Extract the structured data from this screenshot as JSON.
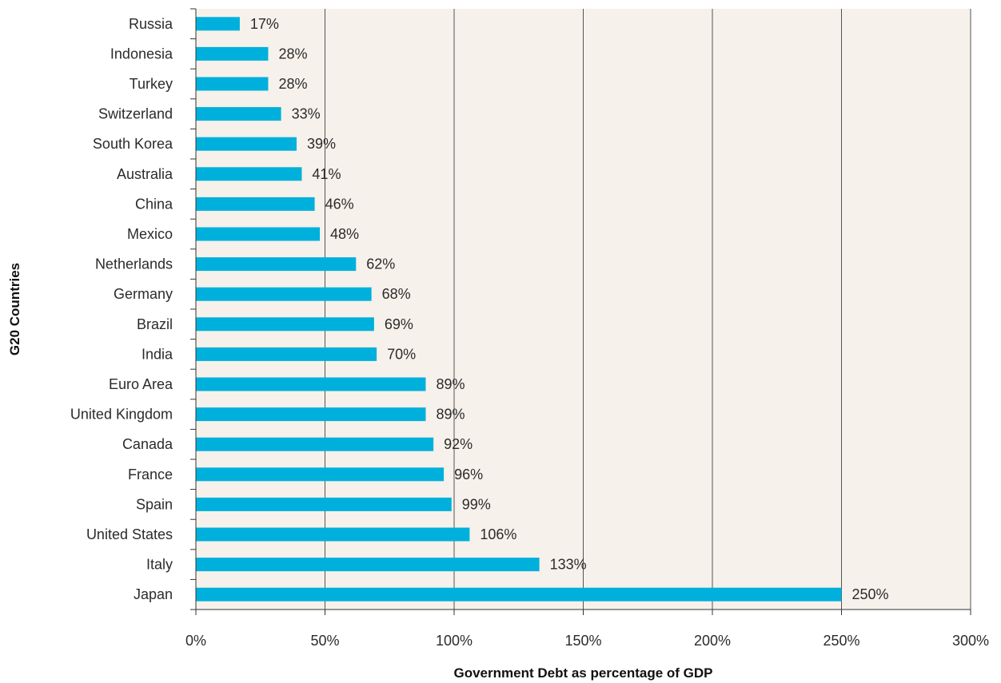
{
  "chart_data": {
    "type": "bar",
    "orientation": "horizontal",
    "categories": [
      "Russia",
      "Indonesia",
      "Turkey",
      "Switzerland",
      "South Korea",
      "Australia",
      "China",
      "Mexico",
      "Netherlands",
      "Germany",
      "Brazil",
      "India",
      "Euro Area",
      "United Kingdom",
      "Canada",
      "France",
      "Spain",
      "United States",
      "Italy",
      "Japan"
    ],
    "values": [
      17,
      28,
      28,
      33,
      39,
      41,
      46,
      48,
      62,
      68,
      69,
      70,
      89,
      89,
      92,
      96,
      99,
      106,
      133,
      250
    ],
    "data_labels": [
      "17%",
      "28%",
      "28%",
      "33%",
      "39%",
      "41%",
      "46%",
      "48%",
      "62%",
      "68%",
      "69%",
      "70%",
      "89%",
      "89%",
      "92%",
      "96%",
      "99%",
      "106%",
      "133%",
      "250%"
    ],
    "xlabel": "Government Debt as percentage of GDP",
    "ylabel": "G20 Countries",
    "xlim": [
      0,
      300
    ],
    "x_ticks": [
      0,
      50,
      100,
      150,
      200,
      250,
      300
    ],
    "x_tick_labels": [
      "0%",
      "50%",
      "100%",
      "150%",
      "200%",
      "250%",
      "300%"
    ],
    "grid": "vertical",
    "legend": "none"
  },
  "colors": {
    "bar": "#00b0dc",
    "plot_background": "#f6f1ea",
    "gridline": "#555555",
    "axis": "#333333"
  }
}
